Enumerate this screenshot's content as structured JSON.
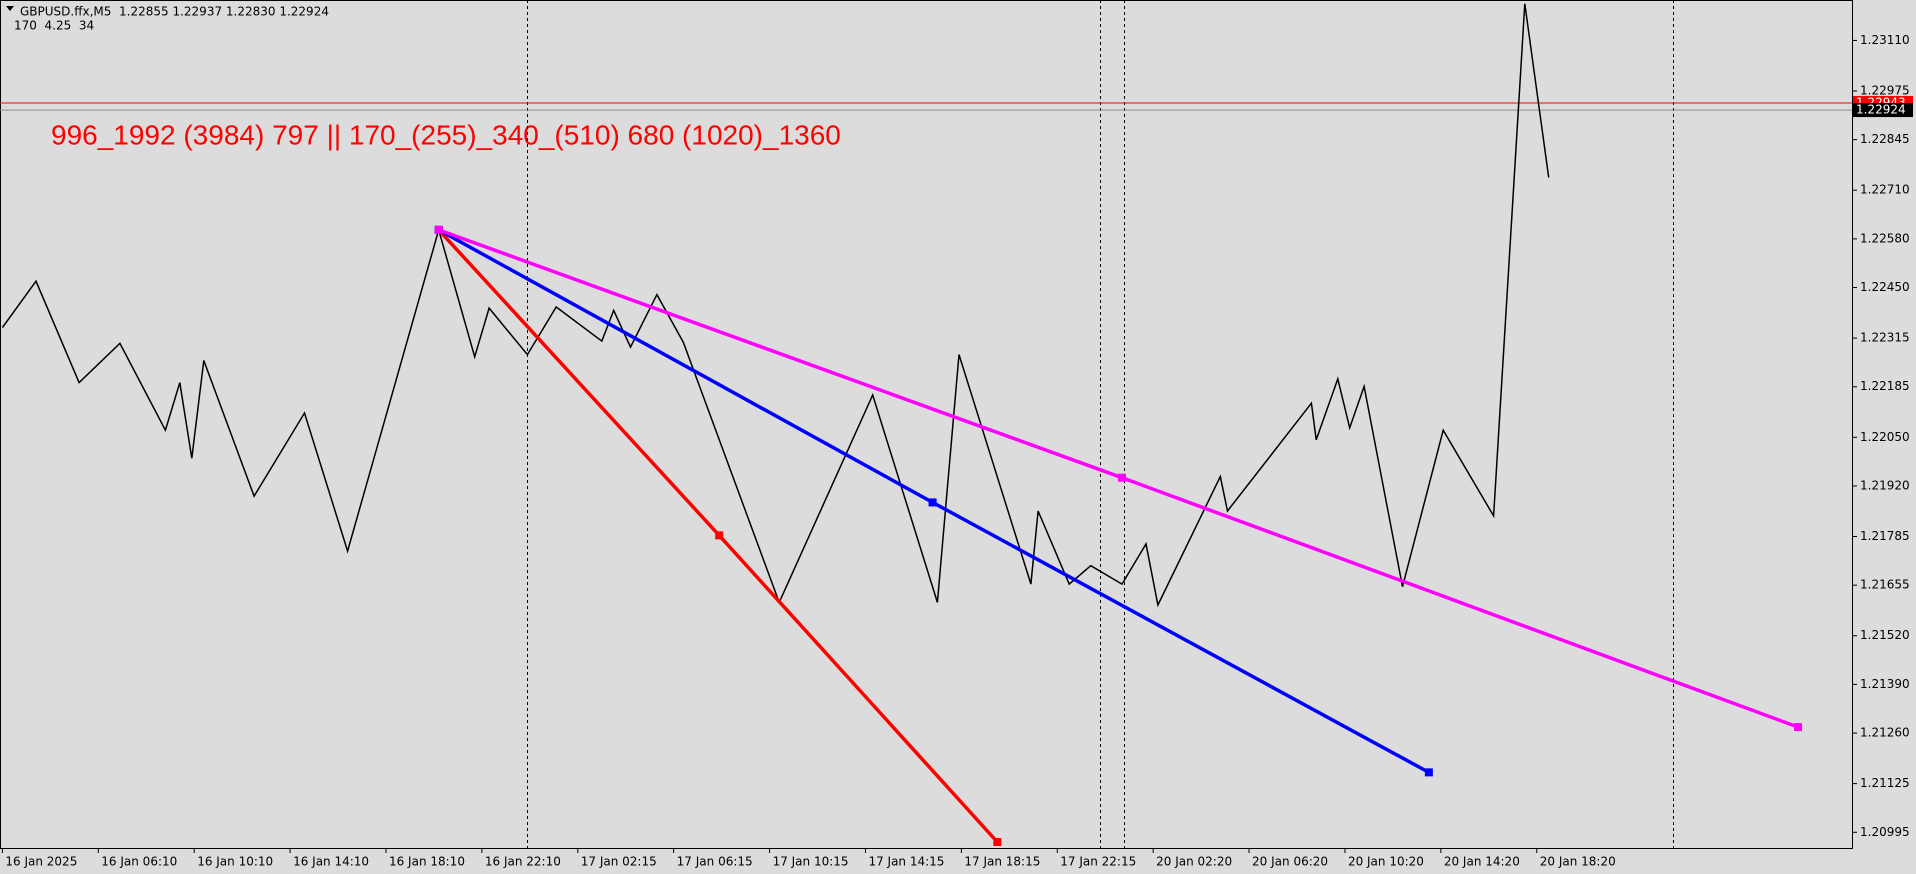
{
  "chart_data": {
    "type": "line",
    "info_line": "GBPUSD.ffx,M5  1.22855 1.22937 1.22830 1.22924",
    "indicator_line": "170  4.25  34",
    "annotation": "996_1992 (3984) 797 || 170_(255)_340_(510) 680 (1020)_1360",
    "xlim": [
      -0.1,
      77.15
    ],
    "xticks": [
      {
        "value": 0,
        "label": "16 Jan 2025"
      },
      {
        "value": 4,
        "label": "16 Jan 06:10"
      },
      {
        "value": 8,
        "label": "16 Jan 10:10"
      },
      {
        "value": 12,
        "label": "16 Jan 14:10"
      },
      {
        "value": 16,
        "label": "16 Jan 18:10"
      },
      {
        "value": 20,
        "label": "16 Jan 22:10"
      },
      {
        "value": 24,
        "label": "17 Jan 02:15"
      },
      {
        "value": 28,
        "label": "17 Jan 06:15"
      },
      {
        "value": 32,
        "label": "17 Jan 10:15"
      },
      {
        "value": 36,
        "label": "17 Jan 14:15"
      },
      {
        "value": 40,
        "label": "17 Jan 18:15"
      },
      {
        "value": 44,
        "label": "17 Jan 22:15"
      },
      {
        "value": 48,
        "label": "20 Jan 02:20"
      },
      {
        "value": 52,
        "label": "20 Jan 06:20"
      },
      {
        "value": 56,
        "label": "20 Jan 10:20"
      },
      {
        "value": 60,
        "label": "20 Jan 14:20"
      },
      {
        "value": 64,
        "label": "20 Jan 18:20"
      }
    ],
    "ylim": [
      1.20953,
      1.23218
    ],
    "yticks": [
      {
        "value": 1.2311,
        "label": "1.23110"
      },
      1.22975,
      1.22845,
      {
        "value": 1.2271,
        "label": "1.22710"
      },
      {
        "value": 1.2258,
        "label": "1.22580"
      },
      {
        "value": 1.2245,
        "label": "1.22450"
      },
      1.22315,
      1.22185,
      {
        "value": 1.2205,
        "label": "1.22050"
      },
      {
        "value": 1.2192,
        "label": "1.21920"
      },
      1.21785,
      1.21655,
      {
        "value": 1.2152,
        "label": "1.21520"
      },
      {
        "value": 1.2139,
        "label": "1.21390"
      },
      {
        "value": 1.2126,
        "label": "1.21260"
      },
      1.21125,
      1.20995
    ],
    "series": [
      {
        "color": "#000000",
        "x": [
          0,
          1.4,
          3.2,
          4.9,
          6.8,
          7.4,
          7.9,
          8.4,
          10.5,
          12.6,
          14.4,
          18.2,
          19.7,
          20.3,
          21.9,
          23.1,
          25.0,
          25.5,
          26.2,
          27.3,
          28.4,
          32.4,
          36.3,
          39.0,
          39.9,
          42.9,
          43.2,
          44.5,
          45.4,
          46.7,
          47.7,
          48.2,
          50.8,
          51.1,
          54.6,
          54.8,
          55.7,
          56.2,
          56.8,
          58.4,
          60.1,
          62.2,
          63.5,
          64.5
        ],
        "values": [
          1.22343,
          1.22467,
          1.22196,
          1.22301,
          1.22069,
          1.22196,
          1.21994,
          1.22255,
          1.21893,
          1.22115,
          1.21746,
          1.22604,
          1.22265,
          1.22395,
          1.22271,
          1.22398,
          1.22307,
          1.22389,
          1.22291,
          1.22431,
          1.22304,
          1.21609,
          1.22163,
          1.21609,
          1.22271,
          1.21658,
          1.21853,
          1.21658,
          1.21707,
          1.21658,
          1.21765,
          1.21602,
          1.21945,
          1.21853,
          1.22141,
          1.22043,
          1.22206,
          1.22075,
          1.22186,
          1.21651,
          1.22069,
          1.2184,
          1.23208,
          1.22744
        ]
      }
    ],
    "trendlines": [
      {
        "color": "#ff0000",
        "x": [
          18.2,
          29.9,
          41.5
        ],
        "values": [
          1.22604,
          1.21788,
          1.20969
        ]
      },
      {
        "color": "#0000ff",
        "x": [
          18.2,
          38.8,
          59.5
        ],
        "values": [
          1.22604,
          1.21876,
          1.21155
        ]
      },
      {
        "color": "#ff00ff",
        "x": [
          18.2,
          46.7,
          74.9
        ],
        "values": [
          1.22604,
          1.21942,
          1.21276
        ]
      }
    ],
    "price_lines": [
      {
        "value": 1.22943,
        "color": "#ff0000"
      },
      {
        "value": 1.22924,
        "color": "#000000"
      }
    ],
    "separators": [
      21.9,
      45.8,
      46.8,
      69.7
    ]
  }
}
